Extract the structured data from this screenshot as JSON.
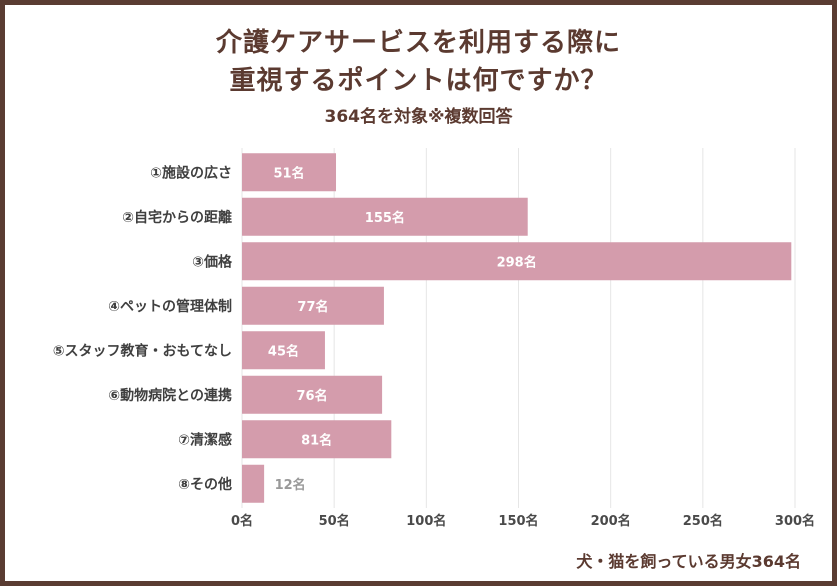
{
  "chart_data": {
    "type": "bar",
    "orientation": "horizontal",
    "title_line1": "介護ケアサービスを利用する際に",
    "title_line2": "重視するポイントは何ですか？",
    "subtitle": "364名を対象※複数回答",
    "note": "犬・猫を飼っている男女364名",
    "categories": [
      "①施設の広さ",
      "②自宅からの距離",
      "③価格",
      "④ペットの管理体制",
      "⑤スタッフ教育・おもてなし",
      "⑥動物病院との連携",
      "⑦清潔感",
      "⑧その他"
    ],
    "values": [
      51,
      155,
      298,
      77,
      45,
      76,
      81,
      12
    ],
    "unit": "名",
    "xlim": [
      0,
      300
    ],
    "xticks": [
      0,
      50,
      100,
      150,
      200,
      250,
      300
    ],
    "xtick_labels": [
      "0名",
      "50名",
      "100名",
      "150名",
      "200名",
      "250名",
      "300名"
    ],
    "grid": true,
    "colors": {
      "bar": "#d49cac",
      "label_inside": "#ffffff",
      "label_outside": "#999999",
      "grid": "#e6e6e6",
      "title": "#5b3a30",
      "frame": "#5a3c32"
    }
  }
}
